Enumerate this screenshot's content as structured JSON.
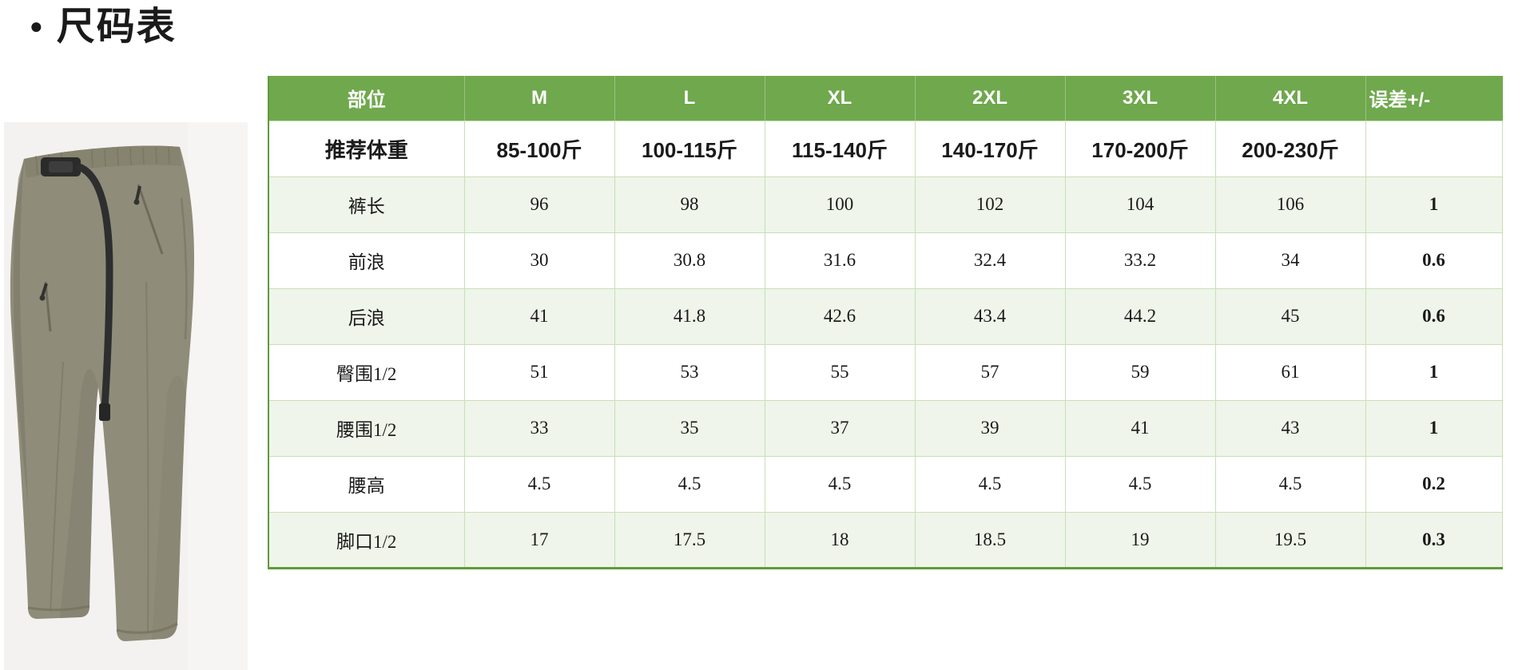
{
  "page": {
    "bullet": "•",
    "title": "尺码表"
  },
  "colors": {
    "header_green": "#6FA84D",
    "row_green": "#EFF5EA",
    "border_green": "#C9DFB8",
    "outer_green": "#5F9B3C",
    "photo_bg": "#F3F2F0",
    "pants_fabric": "#8F8C7A",
    "pants_shadow": "#7B7867",
    "belt_black": "#2B2B2B"
  },
  "product": {
    "image_name": "khaki-pants-product-photo"
  },
  "size_chart": {
    "columns": [
      "部位",
      "M",
      "L",
      "XL",
      "2XL",
      "3XL",
      "4XL",
      "误差+/-"
    ],
    "rows": [
      {
        "label": "推荐体重",
        "weight_row": true,
        "values": [
          "85-100斤",
          "100-115斤",
          "115-140斤",
          "140-170斤",
          "170-200斤",
          "200-230斤",
          ""
        ]
      },
      {
        "label": "裤长",
        "values": [
          "96",
          "98",
          "100",
          "102",
          "104",
          "106",
          "1"
        ]
      },
      {
        "label": "前浪",
        "values": [
          "30",
          "30.8",
          "31.6",
          "32.4",
          "33.2",
          "34",
          "0.6"
        ]
      },
      {
        "label": "后浪",
        "values": [
          "41",
          "41.8",
          "42.6",
          "43.4",
          "44.2",
          "45",
          "0.6"
        ]
      },
      {
        "label": "臀围1/2",
        "values": [
          "51",
          "53",
          "55",
          "57",
          "59",
          "61",
          "1"
        ]
      },
      {
        "label": "腰围1/2",
        "values": [
          "33",
          "35",
          "37",
          "39",
          "41",
          "43",
          "1"
        ]
      },
      {
        "label": "腰高",
        "values": [
          "4.5",
          "4.5",
          "4.5",
          "4.5",
          "4.5",
          "4.5",
          "0.2"
        ]
      },
      {
        "label": "脚口1/2",
        "values": [
          "17",
          "17.5",
          "18",
          "18.5",
          "19",
          "19.5",
          "0.3"
        ]
      }
    ]
  }
}
